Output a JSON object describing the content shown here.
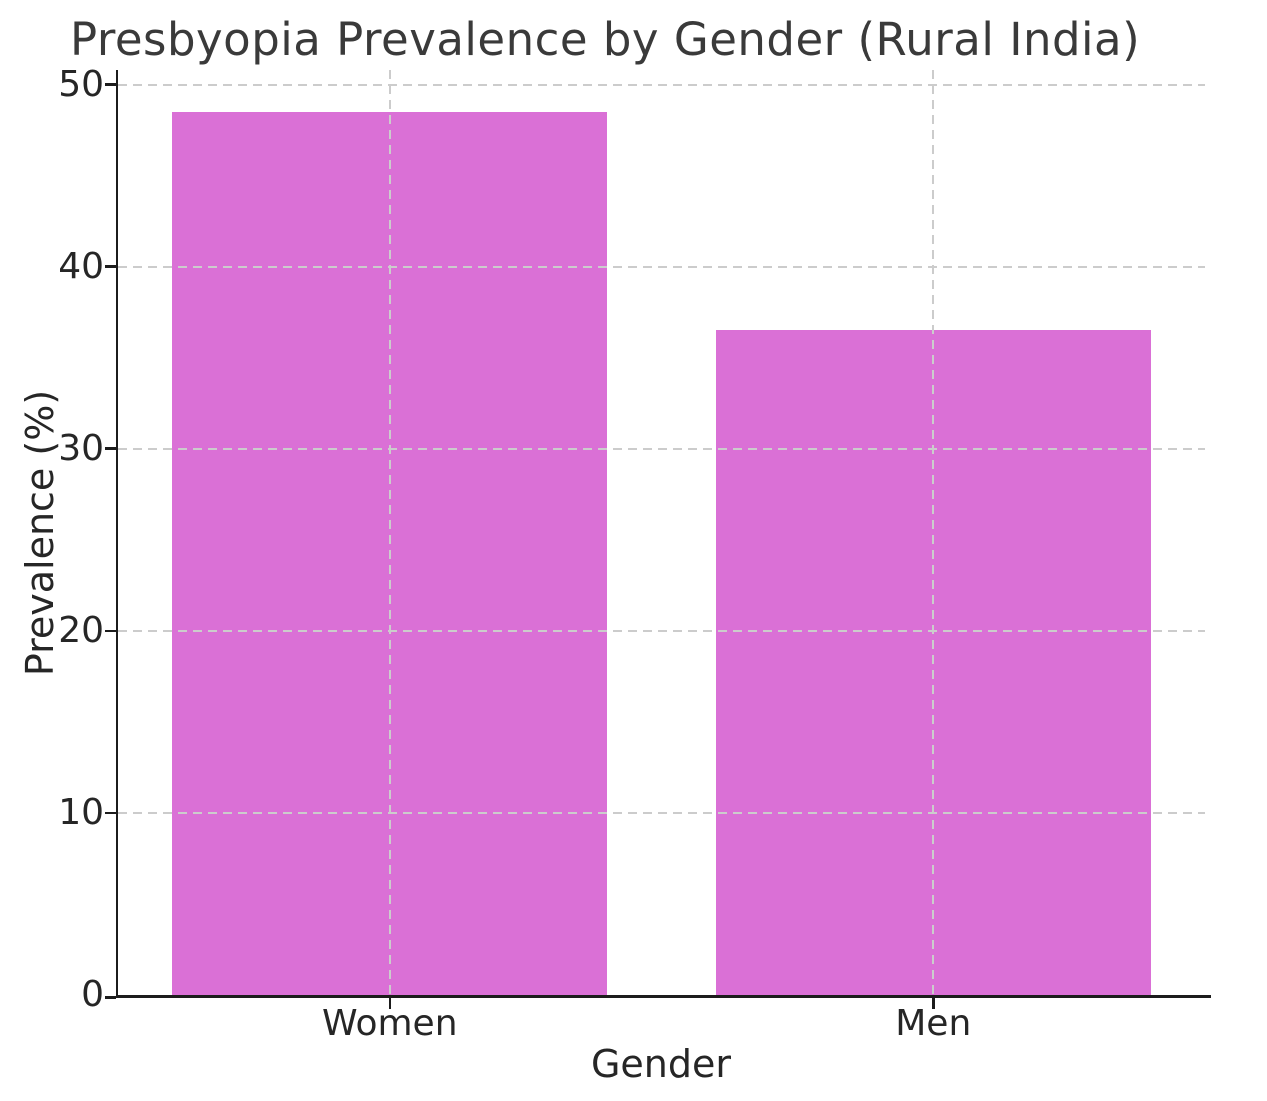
{
  "chart_data": {
    "type": "bar",
    "title": "Presbyopia Prevalence by Gender (Rural India)",
    "xlabel": "Gender",
    "ylabel": "Prevalence (%)",
    "categories": [
      "Women",
      "Men"
    ],
    "values": [
      48.5,
      36.5
    ],
    "yticks": [
      0,
      10,
      20,
      30,
      40,
      50
    ],
    "ylim": [
      0,
      50.8
    ],
    "bar_color": "#da70d6",
    "grid": "dashed, horizontal and vertical, drawn above bars",
    "grid_color": "#cccccc",
    "spine_color": "#1c1c1c",
    "title_color": "#3a3a3a",
    "tick_label_color": "#262626",
    "legend": "none"
  }
}
